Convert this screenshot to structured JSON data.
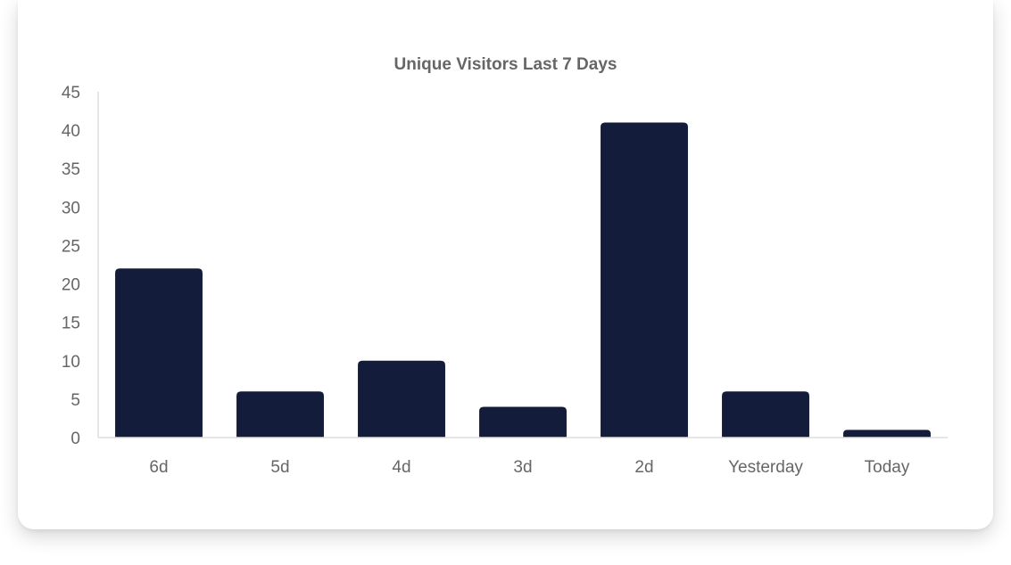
{
  "chart_data": {
    "type": "bar",
    "title": "Unique Visitors Last 7 Days",
    "categories": [
      "6d",
      "5d",
      "4d",
      "3d",
      "2d",
      "Yesterday",
      "Today"
    ],
    "values": [
      22,
      6,
      10,
      4,
      41,
      6,
      1
    ],
    "xlabel": "",
    "ylabel": "",
    "ylim": [
      0,
      45
    ],
    "yticks": [
      "0",
      "5",
      "10",
      "15",
      "20",
      "25",
      "30",
      "35",
      "40",
      "45"
    ],
    "grid": false,
    "legend": "none",
    "bar_color": "#131d3b",
    "axis_color": "#dddddd",
    "text_color": "#666666"
  }
}
